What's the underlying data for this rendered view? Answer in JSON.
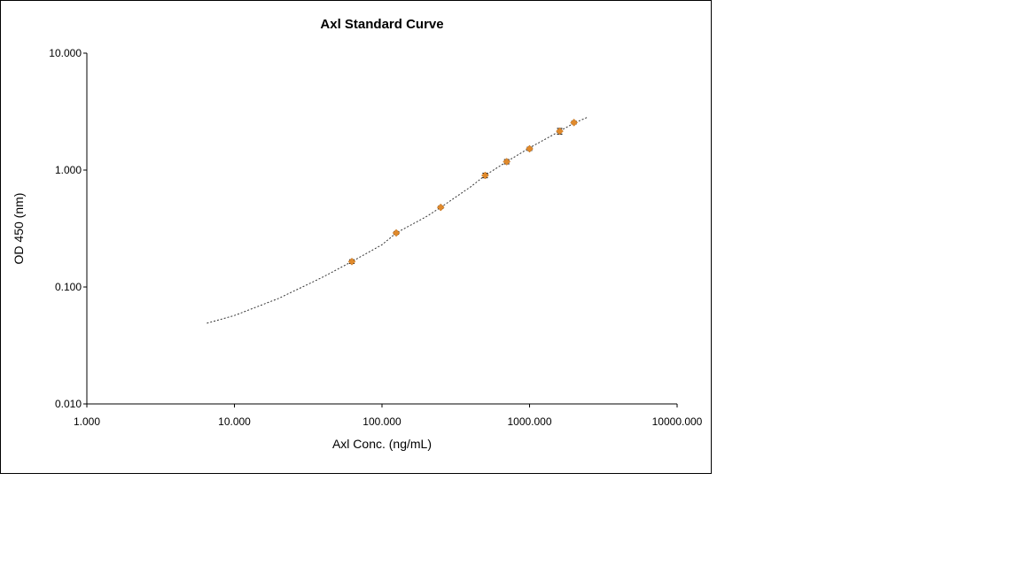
{
  "chart_data": {
    "type": "scatter",
    "title": "Axl Standard Curve",
    "xlabel": "Axl Conc. (ng/mL)",
    "ylabel": "OD 450 (nm)",
    "x_scale": "log",
    "y_scale": "log",
    "xlim": [
      1,
      10000
    ],
    "ylim": [
      0.01,
      10
    ],
    "x_ticks": [
      "1.000",
      "10.000",
      "100.000",
      "1000.000",
      "10000.000"
    ],
    "y_ticks": [
      "0.010",
      "0.100",
      "1.000",
      "10.000"
    ],
    "grid": false,
    "legend": "none",
    "point_color": "#e08a2c",
    "trendline_color": "#333333",
    "series": [
      {
        "x": [
          62.5,
          125,
          250,
          500,
          700,
          1000,
          1600,
          2000
        ],
        "y": [
          0.165,
          0.29,
          0.48,
          0.9,
          1.18,
          1.52,
          2.15,
          2.55
        ],
        "y_err": [
          0.006,
          0.008,
          0.012,
          0.04,
          0.05,
          0.05,
          0.12,
          0.07
        ]
      }
    ],
    "trendline": {
      "style": "dashed",
      "x": [
        6.5,
        10,
        20,
        40,
        62.5,
        100,
        125,
        200,
        250,
        400,
        500,
        700,
        1000,
        1600,
        2000,
        2500
      ],
      "y": [
        0.049,
        0.057,
        0.08,
        0.122,
        0.165,
        0.23,
        0.29,
        0.4,
        0.48,
        0.72,
        0.9,
        1.18,
        1.55,
        2.15,
        2.52,
        2.85
      ]
    }
  }
}
